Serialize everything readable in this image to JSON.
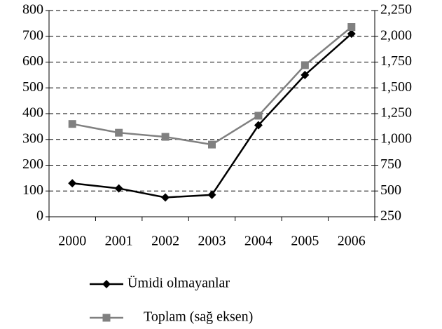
{
  "chart_data": {
    "type": "line",
    "categories": [
      "2000",
      "2001",
      "2002",
      "2003",
      "2004",
      "2005",
      "2006"
    ],
    "series": [
      {
        "name": "Ümidi olmayanlar",
        "color": "#000000",
        "marker": "diamond",
        "values": [
          130,
          110,
          75,
          85,
          355,
          550,
          710
        ]
      },
      {
        "name": "Toplam (sağ eksen)",
        "color": "#808080",
        "marker": "square",
        "axis": "y2",
        "values": [
          1150,
          1065,
          1025,
          950,
          1230,
          1720,
          2090
        ]
      }
    ],
    "ylim": [
      0,
      800
    ],
    "yticks": [
      0,
      100,
      200,
      300,
      400,
      500,
      600,
      700,
      800
    ],
    "y2lim": [
      250,
      2250
    ],
    "y2ticks": [
      250,
      500,
      750,
      {
        "value": 1000,
        "label": "1,000"
      },
      {
        "value": 1250,
        "label": "1,250"
      },
      {
        "value": 1500,
        "label": "1,500"
      },
      {
        "value": 1750,
        "label": "1,750"
      },
      {
        "value": 2000,
        "label": "2,000"
      },
      {
        "value": 2250,
        "label": "2,250"
      }
    ],
    "grid": true
  }
}
